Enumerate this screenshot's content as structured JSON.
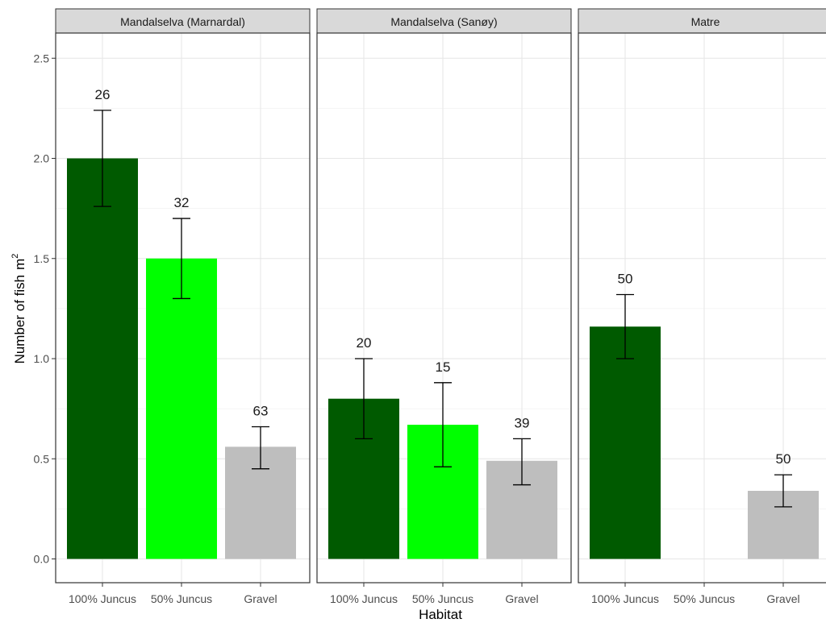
{
  "chart_data": {
    "type": "bar",
    "xlabel": "Habitat",
    "ylabel": "Number of fish",
    "ylabel_unit": "m",
    "ylabel_superscript": "2",
    "ylim": [
      0,
      2.5
    ],
    "yticks": [
      "0.0",
      "0.5",
      "1.0",
      "1.5",
      "2.0",
      "2.5"
    ],
    "ytick_values": [
      0,
      0.5,
      1.0,
      1.5,
      2.0,
      2.5
    ],
    "categories": [
      "100% Juncus",
      "50% Juncus",
      "Gravel"
    ],
    "colors": {
      "100% Juncus": "#005a00",
      "50% Juncus": "#00ff00",
      "Gravel": "#bebebe"
    },
    "grid": true,
    "legend": "none",
    "panels": [
      {
        "title": "Mandalselva (Marnardal)",
        "bars": [
          {
            "category": "100% Juncus",
            "value": 2.0,
            "err_low": 1.76,
            "err_high": 2.24,
            "label": "26"
          },
          {
            "category": "50% Juncus",
            "value": 1.5,
            "err_low": 1.3,
            "err_high": 1.7,
            "label": "32"
          },
          {
            "category": "Gravel",
            "value": 0.56,
            "err_low": 0.45,
            "err_high": 0.66,
            "label": "63"
          }
        ]
      },
      {
        "title": "Mandalselva (Sanøy)",
        "bars": [
          {
            "category": "100% Juncus",
            "value": 0.8,
            "err_low": 0.6,
            "err_high": 1.0,
            "label": "20"
          },
          {
            "category": "50% Juncus",
            "value": 0.67,
            "err_low": 0.46,
            "err_high": 0.88,
            "label": "15"
          },
          {
            "category": "Gravel",
            "value": 0.49,
            "err_low": 0.37,
            "err_high": 0.6,
            "label": "39"
          }
        ]
      },
      {
        "title": "Matre",
        "bars": [
          {
            "category": "100% Juncus",
            "value": 1.16,
            "err_low": 1.0,
            "err_high": 1.32,
            "label": "50"
          },
          {
            "category": "Gravel",
            "value": 0.34,
            "err_low": 0.26,
            "err_high": 0.42,
            "label": "50"
          }
        ]
      }
    ]
  }
}
